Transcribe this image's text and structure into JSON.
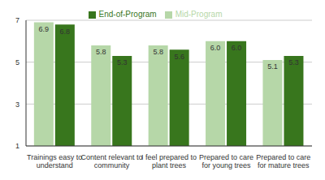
{
  "chart_data": {
    "type": "bar",
    "categories": [
      "Trainings easy to understand",
      "Content relevant to community",
      "I feel prepared to plant trees",
      "Prepared to care for young trees",
      "Prepared to care for mature trees"
    ],
    "series": [
      {
        "name": "Mid-Program",
        "color": "#b6d7a8",
        "values": [
          6.9,
          5.8,
          5.8,
          6.0,
          5.1
        ],
        "value_labels": [
          "6.9",
          "5.8",
          "5.8",
          "6.0",
          "5.1"
        ]
      },
      {
        "name": "End-of-Program",
        "color": "#38761d",
        "values": [
          6.8,
          5.3,
          5.6,
          6.0,
          5.3
        ],
        "value_labels": [
          "6.8",
          "5.3",
          "5.6",
          "6.0",
          "5.3"
        ]
      }
    ],
    "ylim": [
      1,
      7
    ],
    "yticks": [
      1,
      3,
      5,
      7
    ],
    "grid": true,
    "legend": "top",
    "data_labels": true
  }
}
